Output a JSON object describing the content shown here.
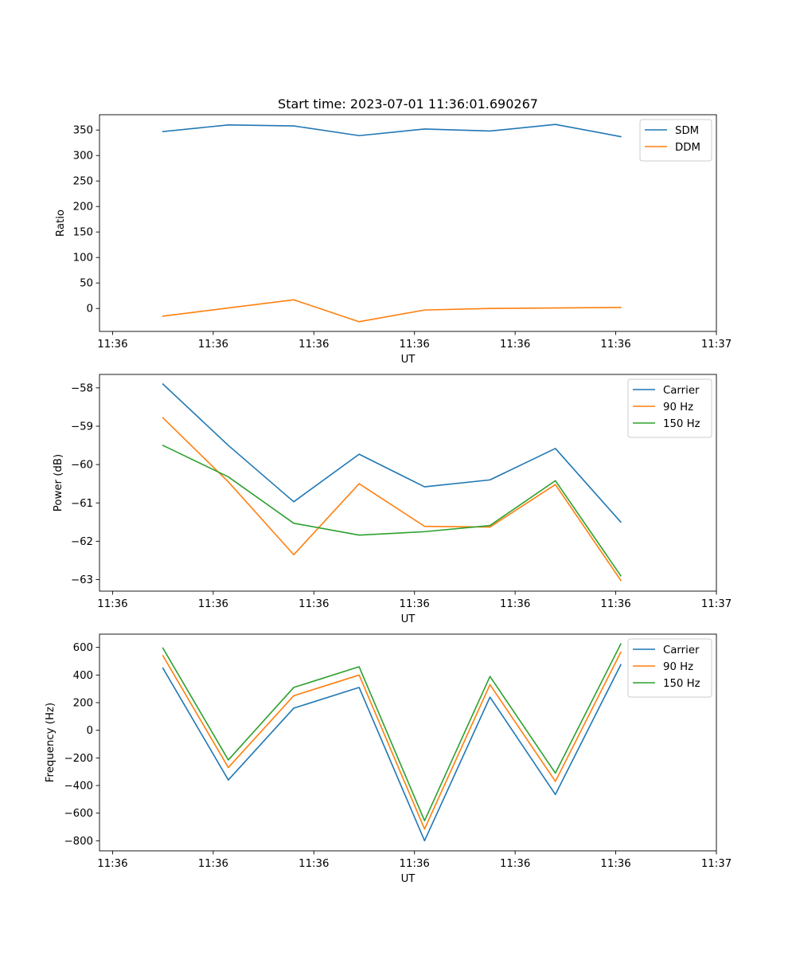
{
  "chart_data": [
    {
      "type": "line",
      "title": "Start time: 2023-07-01 11:36:01.690267",
      "xlabel": "UT",
      "ylabel": "Ratio",
      "x": [
        0.5,
        1.15,
        1.8,
        2.45,
        3.1,
        3.75,
        4.4,
        5.05
      ],
      "xlim": [
        -0.13,
        6.0
      ],
      "x_ticks": [
        0,
        1,
        2,
        3,
        4,
        5,
        6
      ],
      "x_tick_labels": [
        "11:36",
        "11:36",
        "11:36",
        "11:36",
        "11:36",
        "11:36",
        "11:37"
      ],
      "ylim": [
        -45,
        380
      ],
      "y_ticks": [
        0,
        50,
        100,
        150,
        200,
        250,
        300,
        350
      ],
      "y_tick_labels": [
        "0",
        "50",
        "100",
        "150",
        "200",
        "250",
        "300",
        "350"
      ],
      "legend_position": "top-right",
      "series": [
        {
          "name": "SDM",
          "color": "#1f77b4",
          "values": [
            347,
            360,
            358,
            339,
            352,
            348,
            361,
            337
          ]
        },
        {
          "name": "DDM",
          "color": "#ff7f0e",
          "values": [
            -15,
            1,
            17,
            -26,
            -3,
            0,
            1,
            2
          ]
        }
      ]
    },
    {
      "type": "line",
      "title": "",
      "xlabel": "UT",
      "ylabel": "Power (dB)",
      "x": [
        0.5,
        1.15,
        1.8,
        2.45,
        3.1,
        3.75,
        4.4,
        5.05
      ],
      "xlim": [
        -0.13,
        6.0
      ],
      "x_ticks": [
        0,
        1,
        2,
        3,
        4,
        5,
        6
      ],
      "x_tick_labels": [
        "11:36",
        "11:36",
        "11:36",
        "11:36",
        "11:36",
        "11:36",
        "11:37"
      ],
      "ylim": [
        -63.3,
        -57.65
      ],
      "y_ticks": [
        -63,
        -62,
        -61,
        -60,
        -59,
        -58
      ],
      "y_tick_labels": [
        "−63",
        "−62",
        "−61",
        "−60",
        "−59",
        "−58"
      ],
      "legend_position": "top-right",
      "series": [
        {
          "name": "Carrier",
          "color": "#1f77b4",
          "values": [
            -57.9,
            -59.5,
            -60.97,
            -59.73,
            -60.58,
            -60.4,
            -59.58,
            -61.5
          ]
        },
        {
          "name": "90 Hz",
          "color": "#ff7f0e",
          "values": [
            -58.78,
            -60.45,
            -62.35,
            -60.5,
            -61.61,
            -61.63,
            -60.52,
            -63.02
          ]
        },
        {
          "name": "150 Hz",
          "color": "#2ca02c",
          "values": [
            -59.5,
            -60.32,
            -61.53,
            -61.84,
            -61.75,
            -61.59,
            -60.42,
            -62.9
          ]
        }
      ]
    },
    {
      "type": "line",
      "title": "",
      "xlabel": "UT",
      "ylabel": "Frequency (Hz)",
      "x": [
        0.5,
        1.15,
        1.8,
        2.45,
        3.1,
        3.75,
        4.4,
        5.05
      ],
      "xlim": [
        -0.13,
        6.0
      ],
      "x_ticks": [
        0,
        1,
        2,
        3,
        4,
        5,
        6
      ],
      "x_tick_labels": [
        "11:36",
        "11:36",
        "11:36",
        "11:36",
        "11:36",
        "11:36",
        "11:37"
      ],
      "ylim": [
        -873,
        696
      ],
      "y_ticks": [
        -800,
        -600,
        -400,
        -200,
        0,
        200,
        400,
        600
      ],
      "y_tick_labels": [
        "−800",
        "−600",
        "−400",
        "−200",
        "0",
        "200",
        "400",
        "600"
      ],
      "legend_position": "top-right",
      "series": [
        {
          "name": "Carrier",
          "color": "#1f77b4",
          "values": [
            450,
            -360,
            160,
            310,
            -800,
            240,
            -465,
            475
          ]
        },
        {
          "name": "90 Hz",
          "color": "#ff7f0e",
          "values": [
            540,
            -270,
            250,
            400,
            -715,
            330,
            -370,
            565
          ]
        },
        {
          "name": "150 Hz",
          "color": "#2ca02c",
          "values": [
            595,
            -215,
            310,
            460,
            -655,
            390,
            -310,
            625
          ]
        }
      ]
    }
  ]
}
